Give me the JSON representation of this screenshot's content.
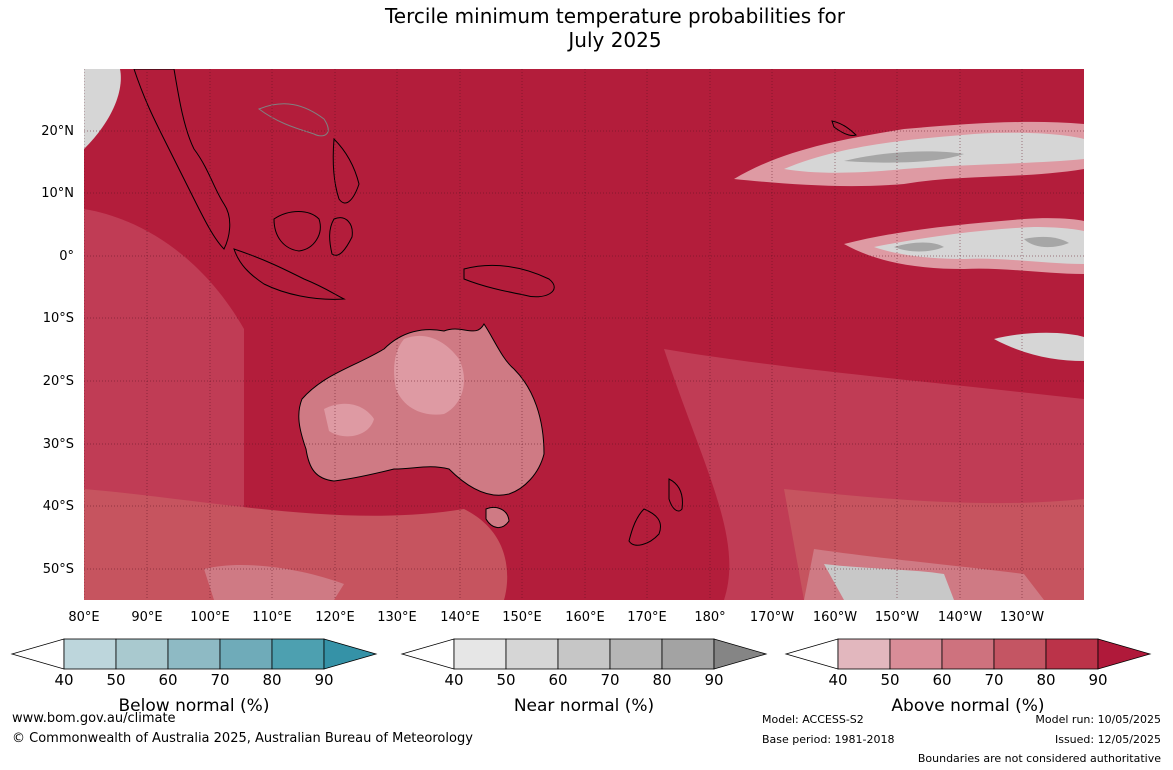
{
  "title": {
    "line1": "Tercile minimum temperature probabilities for",
    "line2": "July 2025"
  },
  "map": {
    "lat_labels": [
      "20°N",
      "10°N",
      "0°",
      "10°S",
      "20°S",
      "30°S",
      "40°S",
      "50°S"
    ],
    "lon_labels": [
      "80°E",
      "90°E",
      "100°E",
      "110°E",
      "120°E",
      "130°E",
      "140°E",
      "150°E",
      "160°E",
      "170°E",
      "180°",
      "170°W",
      "160°W",
      "150°W",
      "140°W",
      "130°W"
    ],
    "colors": {
      "above_90": "#b31d3b",
      "above_80": "#c03c55",
      "above_70": "#c6545f",
      "above_60": "#cf7a84",
      "above_50": "#de9aa3",
      "above_40": "#ebc2c7",
      "near": "#c8c8c8",
      "near_dark": "#a6a6a6",
      "land_outline": "#000000",
      "border": "#808080"
    }
  },
  "legends": {
    "below": {
      "label": "Below normal (%)",
      "ticks": [
        "40",
        "50",
        "60",
        "70",
        "80",
        "90"
      ],
      "colors": [
        "#bdd6dc",
        "#a9c9cf",
        "#8ebac4",
        "#6fabb9",
        "#4da0b0",
        "#3592a7"
      ]
    },
    "near": {
      "label": "Near normal (%)",
      "ticks": [
        "40",
        "50",
        "60",
        "70",
        "80",
        "90"
      ],
      "colors": [
        "#e6e6e6",
        "#d6d6d6",
        "#c6c6c6",
        "#b6b6b6",
        "#a3a3a3",
        "#858585"
      ]
    },
    "above": {
      "label": "Above normal (%)",
      "ticks": [
        "40",
        "50",
        "60",
        "70",
        "80",
        "90"
      ],
      "colors": [
        "#e2b7be",
        "#d98d98",
        "#ce727e",
        "#c45563",
        "#bb3349",
        "#b0193a"
      ]
    }
  },
  "footer": {
    "website": "www.bom.gov.au/climate",
    "copyright": "© Commonwealth of Australia 2025, Australian Bureau of Meteorology",
    "model": "Model: ACCESS-S2",
    "base_period": "Base period: 1981-2018",
    "model_run": "Model run: 10/05/2025",
    "issued": "Issued: 12/05/2025",
    "disclaimer": "Boundaries are not considered authoritative"
  }
}
